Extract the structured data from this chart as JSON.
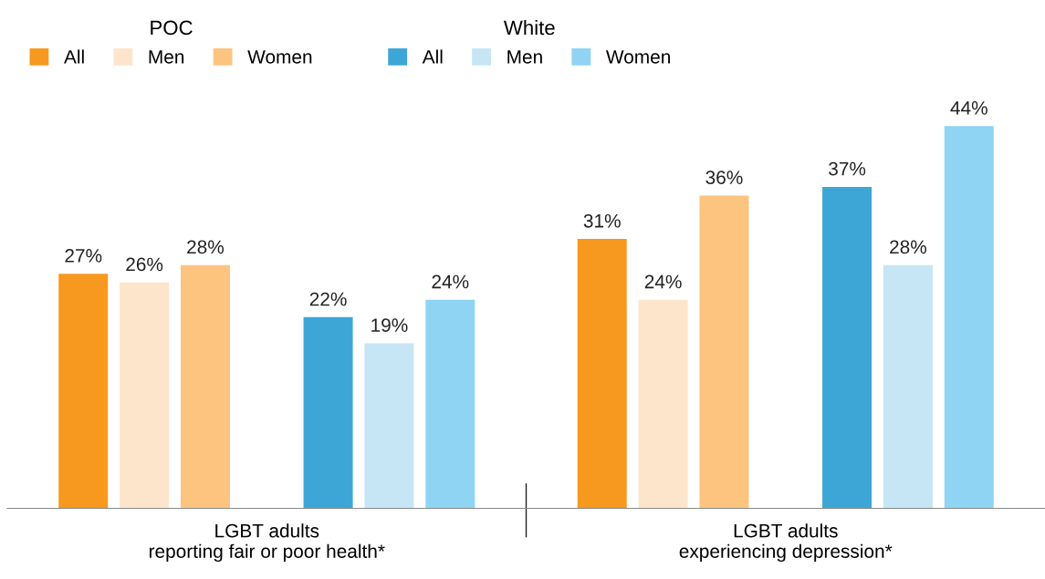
{
  "chart_data": {
    "type": "bar",
    "categories": [
      "LGBT adults\nreporting fair or poor health*",
      "LGBT adults\nexperiencing depression*"
    ],
    "series": [
      {
        "name": "All",
        "color": "#f7991f",
        "values": [
          27,
          31
        ],
        "value_labels": [
          "27%",
          "31%"
        ]
      },
      {
        "name": "Men",
        "color": "#fde5cc",
        "values": [
          26,
          24
        ],
        "value_labels": [
          "26%",
          "24%"
        ]
      },
      {
        "name": "Women",
        "color": "#fdc47f",
        "values": [
          28,
          36
        ],
        "value_labels": [
          "28%",
          "36%"
        ]
      },
      {
        "name": "All",
        "color": "#3ea6d6",
        "values": [
          22,
          37
        ],
        "value_labels": [
          "22%",
          "37%"
        ]
      },
      {
        "name": "Men",
        "color": "#c6e6f5",
        "values": [
          19,
          28
        ],
        "value_labels": [
          "19%",
          "28%"
        ]
      },
      {
        "name": "Women",
        "color": "#8fd4f3",
        "values": [
          24,
          44
        ],
        "value_labels": [
          "24%",
          "44%"
        ]
      }
    ],
    "annotations": [
      "POC",
      "White"
    ],
    "legend": "top left",
    "grid": false
  }
}
